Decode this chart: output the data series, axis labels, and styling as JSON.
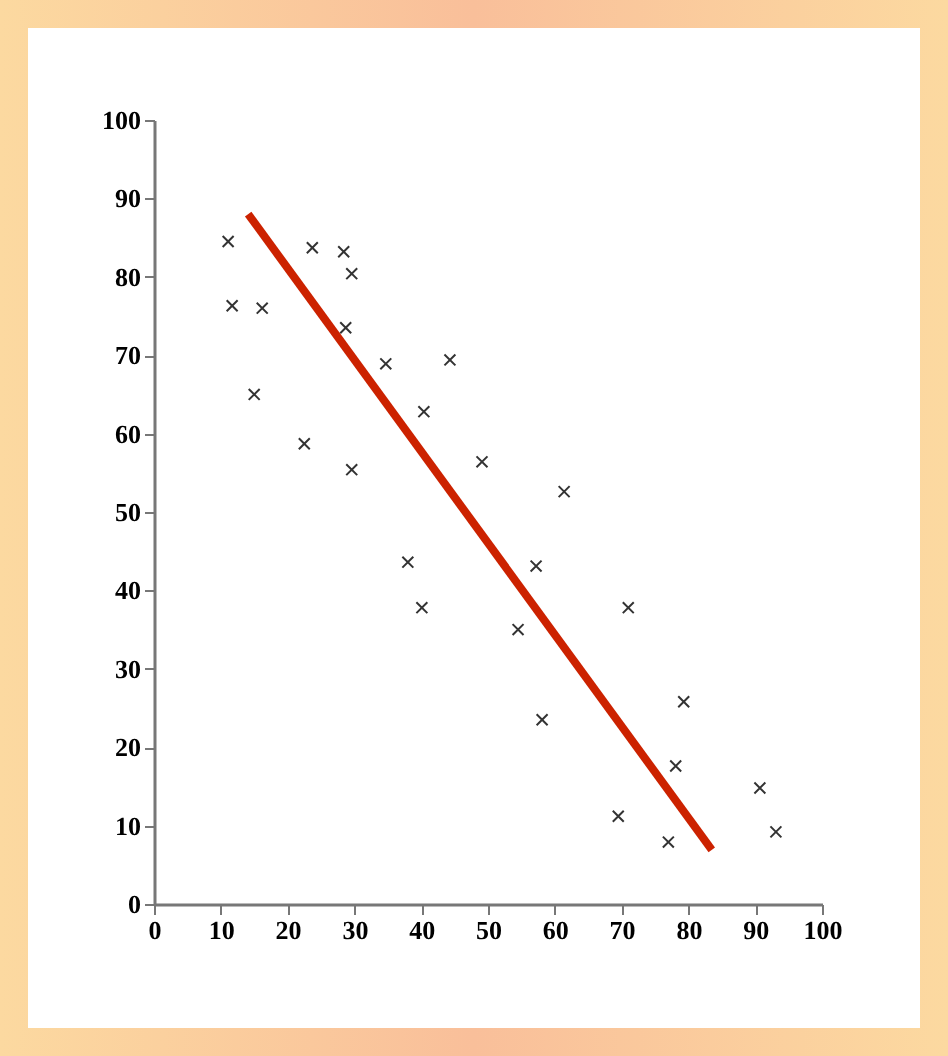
{
  "chart_data": {
    "type": "scatter",
    "xlim": [
      0,
      100
    ],
    "ylim": [
      0,
      100
    ],
    "xticks": [
      0,
      10,
      20,
      30,
      40,
      50,
      60,
      70,
      80,
      90,
      100
    ],
    "yticks": [
      0,
      10,
      20,
      30,
      40,
      50,
      60,
      70,
      80,
      90,
      100
    ],
    "marker": "cross",
    "series": [
      {
        "color": "#333333",
        "x": [
          11.1,
          11.7,
          16.2,
          15,
          22.5,
          23.7,
          28.4,
          29.6,
          28.7,
          29.6,
          34.7,
          44.3,
          40.4,
          38,
          40.1,
          49.1,
          61.4,
          57.2,
          54.5,
          58.1,
          71,
          79.3,
          78.1,
          69.5,
          77,
          90.7,
          93.1
        ],
        "values": [
          84.5,
          76.3,
          76,
          65,
          58.7,
          83.7,
          83.2,
          80.4,
          73.5,
          55.4,
          68.9,
          69.4,
          62.8,
          43.6,
          37.8,
          56.4,
          52.6,
          43.1,
          35,
          23.5,
          37.8,
          25.8,
          17.6,
          11.2,
          7.9,
          14.8,
          9.2
        ]
      },
      {
        "type": "line",
        "color": "#cc2200",
        "line_style": "solid",
        "marker": "none",
        "x": [
          14.1,
          83.5
        ],
        "values": [
          88,
          6.9
        ]
      }
    ]
  }
}
